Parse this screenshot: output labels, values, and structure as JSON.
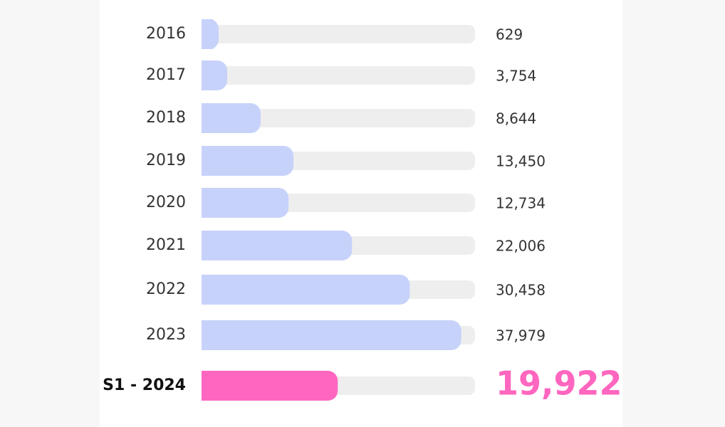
{
  "chart_data": {
    "type": "bar",
    "orientation": "horizontal",
    "categories": [
      "2016",
      "2017",
      "2018",
      "2019",
      "2020",
      "2021",
      "2022",
      "2023",
      "S1 - 2024"
    ],
    "values": [
      629,
      3754,
      8644,
      13450,
      12734,
      22006,
      30458,
      37979,
      19922
    ],
    "value_labels": [
      "629",
      "3,754",
      "8,644",
      "13,450",
      "12,734",
      "22,006",
      "30,458",
      "37,979",
      "19,922"
    ],
    "xlim": [
      0,
      40000
    ],
    "grid": false,
    "legend": "none",
    "colors": {
      "bar": "#c7d2fb",
      "highlight": "#ff66bf",
      "track": "#eeeeee"
    }
  }
}
